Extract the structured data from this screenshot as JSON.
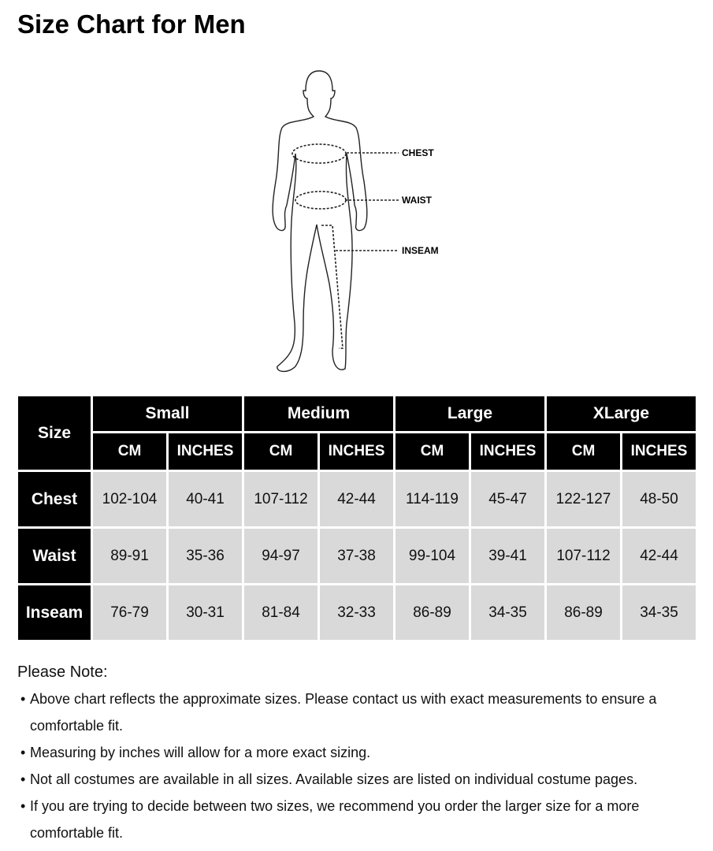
{
  "title": "Size Chart for Men",
  "figure": {
    "labels": {
      "chest": "CHEST",
      "waist": "WAIST",
      "inseam": "INSEAM"
    }
  },
  "table": {
    "corner": "Size",
    "groups": [
      "Small",
      "Medium",
      "Large",
      "XLarge"
    ],
    "units": [
      "CM",
      "INCHES",
      "CM",
      "INCHES",
      "CM",
      "INCHES",
      "CM",
      "INCHES"
    ],
    "rows": [
      {
        "label": "Chest",
        "values": [
          "102-104",
          "40-41",
          "107-112",
          "42-44",
          "114-119",
          "45-47",
          "122-127",
          "48-50"
        ]
      },
      {
        "label": "Waist",
        "values": [
          "89-91",
          "35-36",
          "94-97",
          "37-38",
          "99-104",
          "39-41",
          "107-112",
          "42-44"
        ]
      },
      {
        "label": "Inseam",
        "values": [
          "76-79",
          "30-31",
          "81-84",
          "32-33",
          "86-89",
          "34-35",
          "86-89",
          "34-35"
        ]
      }
    ]
  },
  "notes": {
    "title": "Please Note:",
    "items": [
      "Above chart reflects the approximate sizes. Please contact us with exact measurements to ensure a comfortable fit.",
      "Measuring by inches will allow for a more exact sizing.",
      "Not all costumes are available in all sizes. Available sizes are listed on individual costume pages.",
      "If you are trying to decide between two sizes, we recommend you order the larger size for a more comfortable fit."
    ]
  }
}
